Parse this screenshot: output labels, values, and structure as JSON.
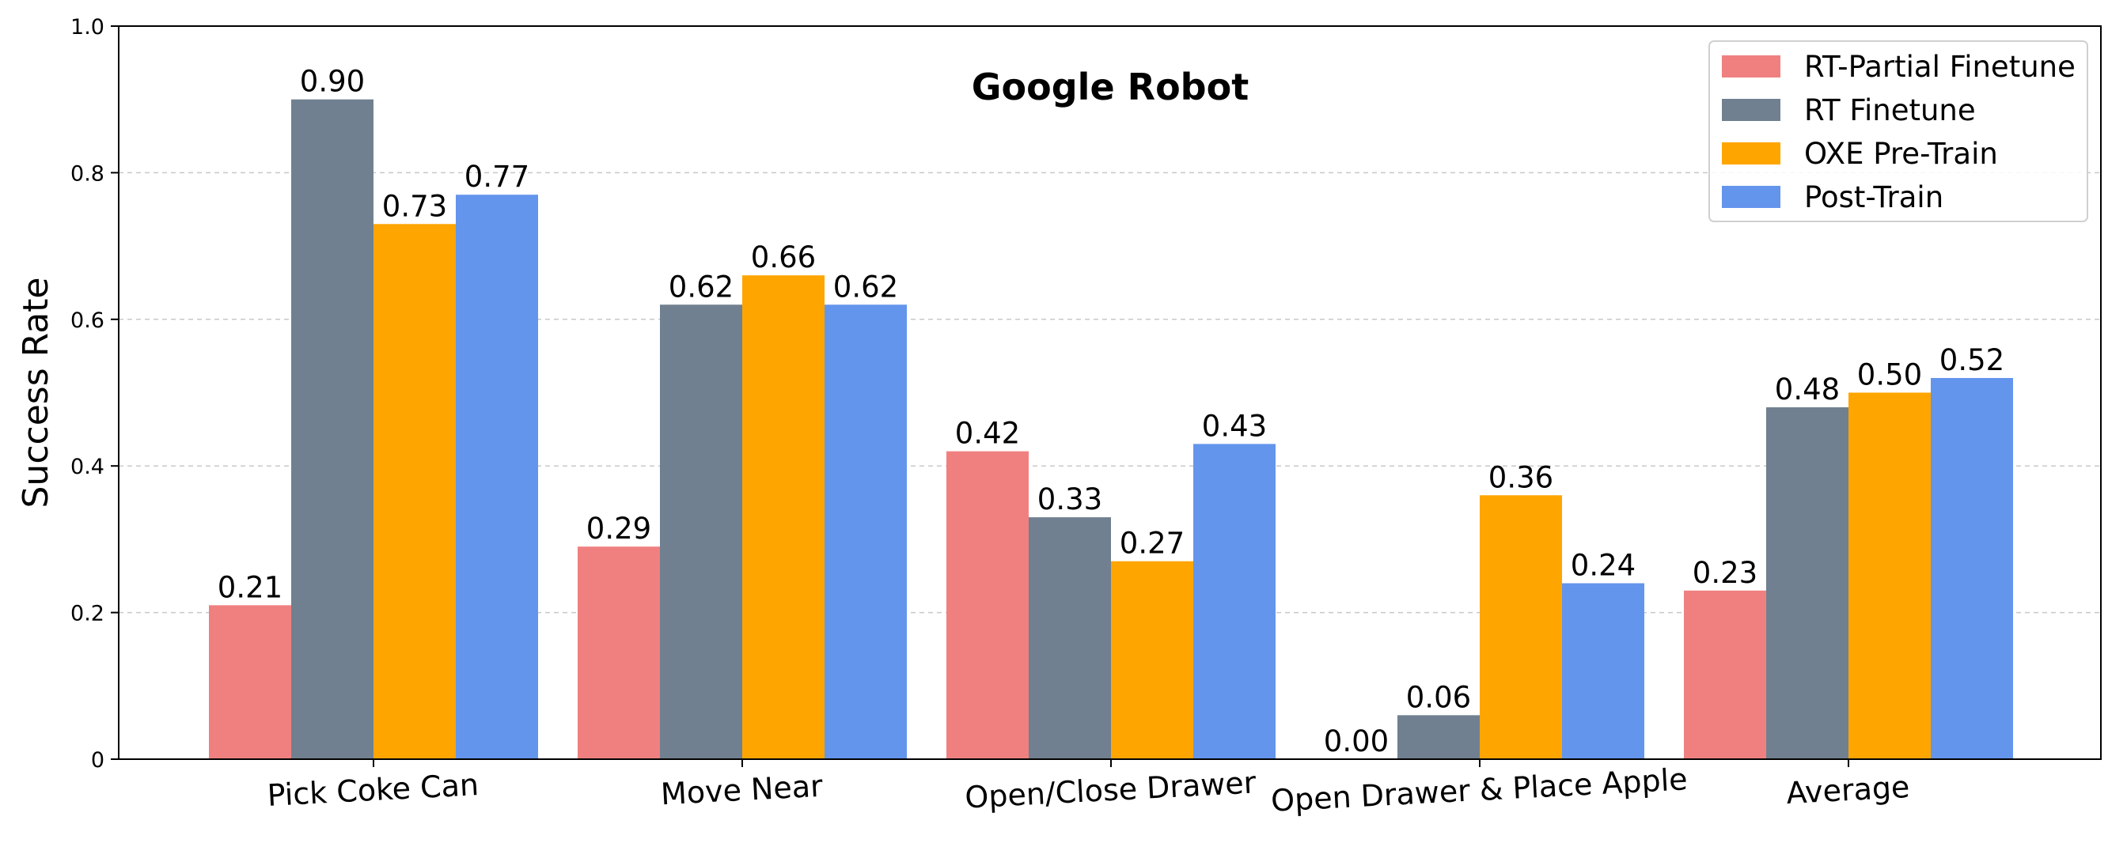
{
  "chart_data": {
    "type": "bar",
    "title": "Google Robot",
    "xlabel": "",
    "ylabel": "Success Rate",
    "ylim": [
      0,
      1.0
    ],
    "yticks": [
      0,
      0.2,
      0.4,
      0.6,
      0.8,
      1.0
    ],
    "ytick_labels": [
      "0",
      "0.2",
      "0.4",
      "0.6",
      "0.8",
      "1.0"
    ],
    "grid": "horizontal-dashed",
    "legend_position": "top-right",
    "categories": [
      "Pick Coke Can",
      "Move Near",
      "Open/Close Drawer",
      "Open Drawer & Place Apple",
      "Average"
    ],
    "series": [
      {
        "name": "RT-Partial Finetune",
        "color": "#f08080",
        "values": [
          0.21,
          0.29,
          0.42,
          0.0,
          0.23
        ],
        "labels": [
          "0.21",
          "0.29",
          "0.42",
          "0.00",
          "0.23"
        ]
      },
      {
        "name": "RT Finetune",
        "color": "#708090",
        "values": [
          0.9,
          0.62,
          0.33,
          0.06,
          0.48
        ],
        "labels": [
          "0.90",
          "0.62",
          "0.33",
          "0.06",
          "0.48"
        ]
      },
      {
        "name": "OXE Pre-Train",
        "color": "#ffa500",
        "values": [
          0.73,
          0.66,
          0.27,
          0.36,
          0.5
        ],
        "labels": [
          "0.73",
          "0.66",
          "0.27",
          "0.36",
          "0.50"
        ]
      },
      {
        "name": "Post-Train",
        "color": "#6495ed",
        "values": [
          0.77,
          0.62,
          0.43,
          0.24,
          0.52
        ],
        "labels": [
          "0.77",
          "0.62",
          "0.43",
          "0.24",
          "0.52"
        ]
      }
    ]
  }
}
